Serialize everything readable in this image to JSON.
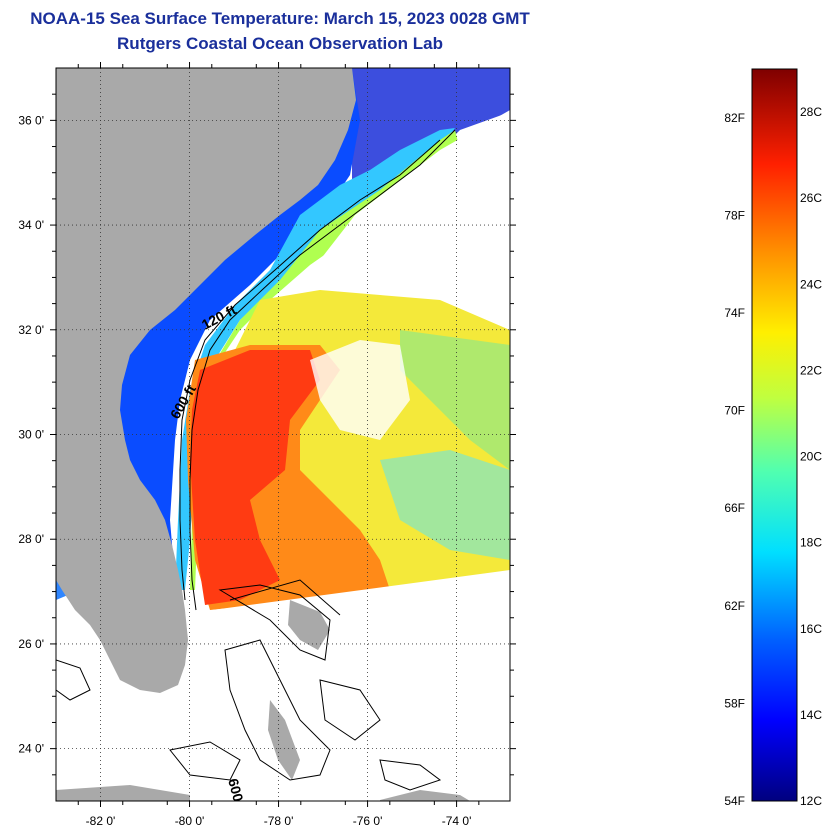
{
  "title": "NOAA-15 Sea Surface Temperature:  March 15, 2023 0028 GMT",
  "subtitle": "Rutgers Coastal Ocean Observation Lab",
  "map": {
    "lon_range": [
      -83.0,
      -72.8
    ],
    "lat_range": [
      23.0,
      37.0
    ],
    "lat_ticks": [
      {
        "value": 36,
        "label": "36 0'"
      },
      {
        "value": 34,
        "label": "34 0'"
      },
      {
        "value": 32,
        "label": "32 0'"
      },
      {
        "value": 30,
        "label": "30 0'"
      },
      {
        "value": 28,
        "label": "28 0'"
      },
      {
        "value": 26,
        "label": "26 0'"
      },
      {
        "value": 24,
        "label": "24 0'"
      }
    ],
    "lon_ticks": [
      {
        "value": -82,
        "label": "-82 0'"
      },
      {
        "value": -80,
        "label": "-80 0'"
      },
      {
        "value": -78,
        "label": "-78 0'"
      },
      {
        "value": -76,
        "label": "-76 0'"
      },
      {
        "value": -74,
        "label": "-74 0'"
      }
    ],
    "contour_labels": [
      {
        "text": "120 ft"
      },
      {
        "text": "600 ft"
      },
      {
        "text": "600 ft"
      }
    ],
    "colors": {
      "land": "#a9a9a9",
      "ocean_blank": "#ffffff"
    }
  },
  "colorbar": {
    "range_c": [
      12,
      29
    ],
    "range_f": [
      54,
      84
    ],
    "colormap": "jet",
    "fahrenheit_labels": [
      {
        "value": 82,
        "label": "82F"
      },
      {
        "value": 78,
        "label": "78F"
      },
      {
        "value": 74,
        "label": "74F"
      },
      {
        "value": 70,
        "label": "70F"
      },
      {
        "value": 66,
        "label": "66F"
      },
      {
        "value": 62,
        "label": "62F"
      },
      {
        "value": 58,
        "label": "58F"
      },
      {
        "value": 54,
        "label": "54F"
      }
    ],
    "celsius_labels": [
      {
        "value": 28,
        "label": "28C"
      },
      {
        "value": 26,
        "label": "26C"
      },
      {
        "value": 24,
        "label": "24C"
      },
      {
        "value": 22,
        "label": "22C"
      },
      {
        "value": 20,
        "label": "20C"
      },
      {
        "value": 18,
        "label": "18C"
      },
      {
        "value": 16,
        "label": "16C"
      },
      {
        "value": 14,
        "label": "14C"
      },
      {
        "value": 12,
        "label": "12C"
      }
    ]
  }
}
